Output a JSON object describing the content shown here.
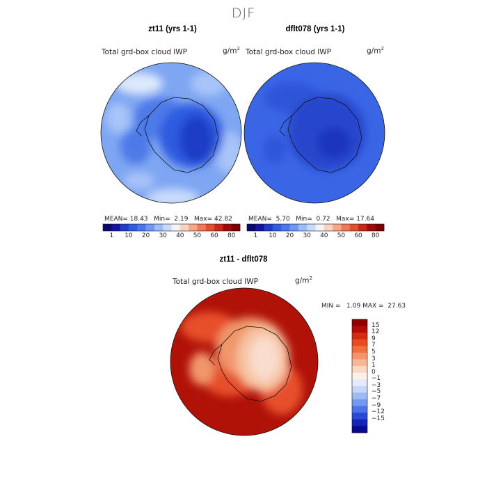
{
  "season": "DJF",
  "panels": [
    {
      "title": "zt11 (yrs 1-1)",
      "variable": "Total grd-box cloud IWP",
      "units_base": "g/m",
      "units_exp": "2",
      "mean": "MEAN=",
      "mean_val": "18.43",
      "min": "Min=",
      "min_val": "2.19",
      "max": "Max=",
      "max_val": "42.82"
    },
    {
      "title": "dflt078 (yrs 1-1)",
      "variable": "Total grd-box cloud IWP",
      "units_base": "g/m",
      "units_exp": "2",
      "mean": "MEAN=",
      "mean_val": "5.70",
      "min": "Min=",
      "min_val": "0.72",
      "max": "Max=",
      "max_val": "17.64"
    }
  ],
  "diff": {
    "title": "zt11 - dflt078",
    "variable": "Total grd-box cloud IWP",
    "units_base": "g/m",
    "units_exp": "2",
    "min": "MIN =",
    "min_val": "1.09",
    "max": "MAX =",
    "max_val": "27.63"
  },
  "chart_data": [
    {
      "type": "heatmap",
      "projection": "south polar stereographic",
      "title": "zt11 (yrs 1-1)",
      "variable": "Total grd-box cloud IWP",
      "units": "g/m^2",
      "mean": 18.43,
      "min": 2.19,
      "max": 42.82,
      "colorbar_levels": [
        1,
        5,
        10,
        15,
        20,
        25,
        30,
        35,
        40,
        45,
        50,
        55,
        60,
        70,
        80
      ],
      "colorbar_tick_labels": [
        "1",
        "10",
        "20",
        "30",
        "40",
        "50",
        "60",
        "80"
      ],
      "colorbar_colors": [
        "#0a0a6e",
        "#1414a0",
        "#1e3cc8",
        "#2f5ce0",
        "#4a78ec",
        "#6e98f4",
        "#9cbcf8",
        "#c8dafc",
        "#f4f4f8",
        "#fad2c4",
        "#f4a888",
        "#ec7c58",
        "#e05030",
        "#c82814",
        "#a00a0a",
        "#780000"
      ]
    },
    {
      "type": "heatmap",
      "projection": "south polar stereographic",
      "title": "dflt078 (yrs 1-1)",
      "variable": "Total grd-box cloud IWP",
      "units": "g/m^2",
      "mean": 5.7,
      "min": 0.72,
      "max": 17.64,
      "colorbar_levels": [
        1,
        5,
        10,
        15,
        20,
        25,
        30,
        35,
        40,
        45,
        50,
        55,
        60,
        70,
        80
      ],
      "colorbar_tick_labels": [
        "1",
        "10",
        "20",
        "30",
        "40",
        "50",
        "60",
        "80"
      ]
    },
    {
      "type": "heatmap",
      "projection": "south polar stereographic",
      "title": "zt11 - dflt078",
      "variable": "Total grd-box cloud IWP",
      "units": "g/m^2",
      "min": 1.09,
      "max": 27.63,
      "colorbar_tick_labels": [
        "15",
        "12",
        "9",
        "7",
        "5",
        "3",
        "1",
        "0",
        "−1",
        "−3",
        "−5",
        "−7",
        "−9",
        "−12",
        "−15"
      ],
      "colorbar_colors": [
        "#8c0000",
        "#b40a0a",
        "#d42a10",
        "#e84c20",
        "#f0703c",
        "#f4946a",
        "#f8b898",
        "#fad8c4",
        "#fcf0e8",
        "#e4ecfc",
        "#c4d6fa",
        "#9cbaf6",
        "#7498f0",
        "#4c74e8",
        "#2848d8",
        "#1424b4",
        "#0a0a8c"
      ]
    }
  ]
}
